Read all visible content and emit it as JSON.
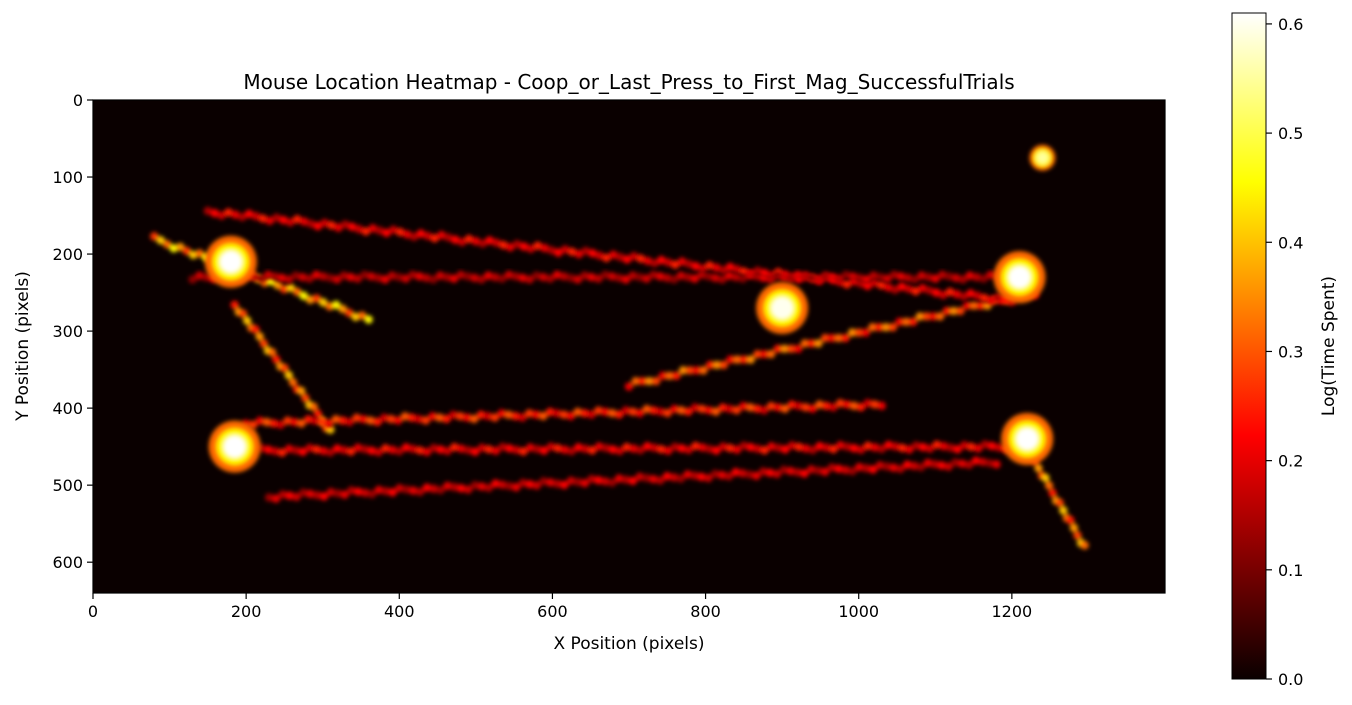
{
  "chart_data": {
    "type": "heatmap",
    "title": "Mouse Location Heatmap - Coop_or_Last_Press_to_First_Mag_SuccessfulTrials",
    "xlabel": "X Position (pixels)",
    "ylabel": "Y Position (pixels)",
    "xlim": [
      0,
      1400
    ],
    "ylim": [
      640,
      0
    ],
    "x_ticks": [
      0,
      200,
      400,
      600,
      800,
      1000,
      1200
    ],
    "y_ticks": [
      0,
      100,
      200,
      300,
      400,
      500,
      600
    ],
    "x_tick_labels": [
      "0",
      "200",
      "400",
      "600",
      "800",
      "1000",
      "1200"
    ],
    "y_tick_labels": [
      "0",
      "100",
      "200",
      "300",
      "400",
      "500",
      "600"
    ],
    "colormap": "hot",
    "colorbar": {
      "label": "Log(Time Spent)",
      "range": [
        0,
        0.61
      ],
      "ticks": [
        0.0,
        0.1,
        0.2,
        0.3,
        0.4,
        0.5,
        0.6
      ],
      "tick_labels": [
        "0.0",
        "0.1",
        "0.2",
        "0.3",
        "0.4",
        "0.5",
        "0.6"
      ]
    },
    "hotspots": [
      {
        "x": 180,
        "y": 210,
        "value": 0.61
      },
      {
        "x": 185,
        "y": 450,
        "value": 0.61
      },
      {
        "x": 1220,
        "y": 440,
        "value": 0.61
      },
      {
        "x": 1210,
        "y": 230,
        "value": 0.61
      },
      {
        "x": 900,
        "y": 270,
        "value": 0.6
      },
      {
        "x": 1240,
        "y": 75,
        "value": 0.55
      }
    ],
    "paths": [
      {
        "from": [
          80,
          180
        ],
        "to": [
          360,
          285
        ],
        "value": 0.45
      },
      {
        "from": [
          185,
          265
        ],
        "to": [
          310,
          430
        ],
        "value": 0.4
      },
      {
        "from": [
          1230,
          470
        ],
        "to": [
          1295,
          580
        ],
        "value": 0.4
      },
      {
        "from": [
          700,
          370
        ],
        "to": [
          1230,
          250
        ],
        "value": 0.35
      },
      {
        "from": [
          150,
          145
        ],
        "to": [
          1200,
          260
        ],
        "value": 0.25
      },
      {
        "from": [
          130,
          230
        ],
        "to": [
          1190,
          230
        ],
        "value": 0.2
      },
      {
        "from": [
          200,
          420
        ],
        "to": [
          1030,
          395
        ],
        "value": 0.3
      },
      {
        "from": [
          220,
          455
        ],
        "to": [
          1210,
          450
        ],
        "value": 0.25
      },
      {
        "from": [
          230,
          515
        ],
        "to": [
          1180,
          470
        ],
        "value": 0.22
      }
    ]
  }
}
